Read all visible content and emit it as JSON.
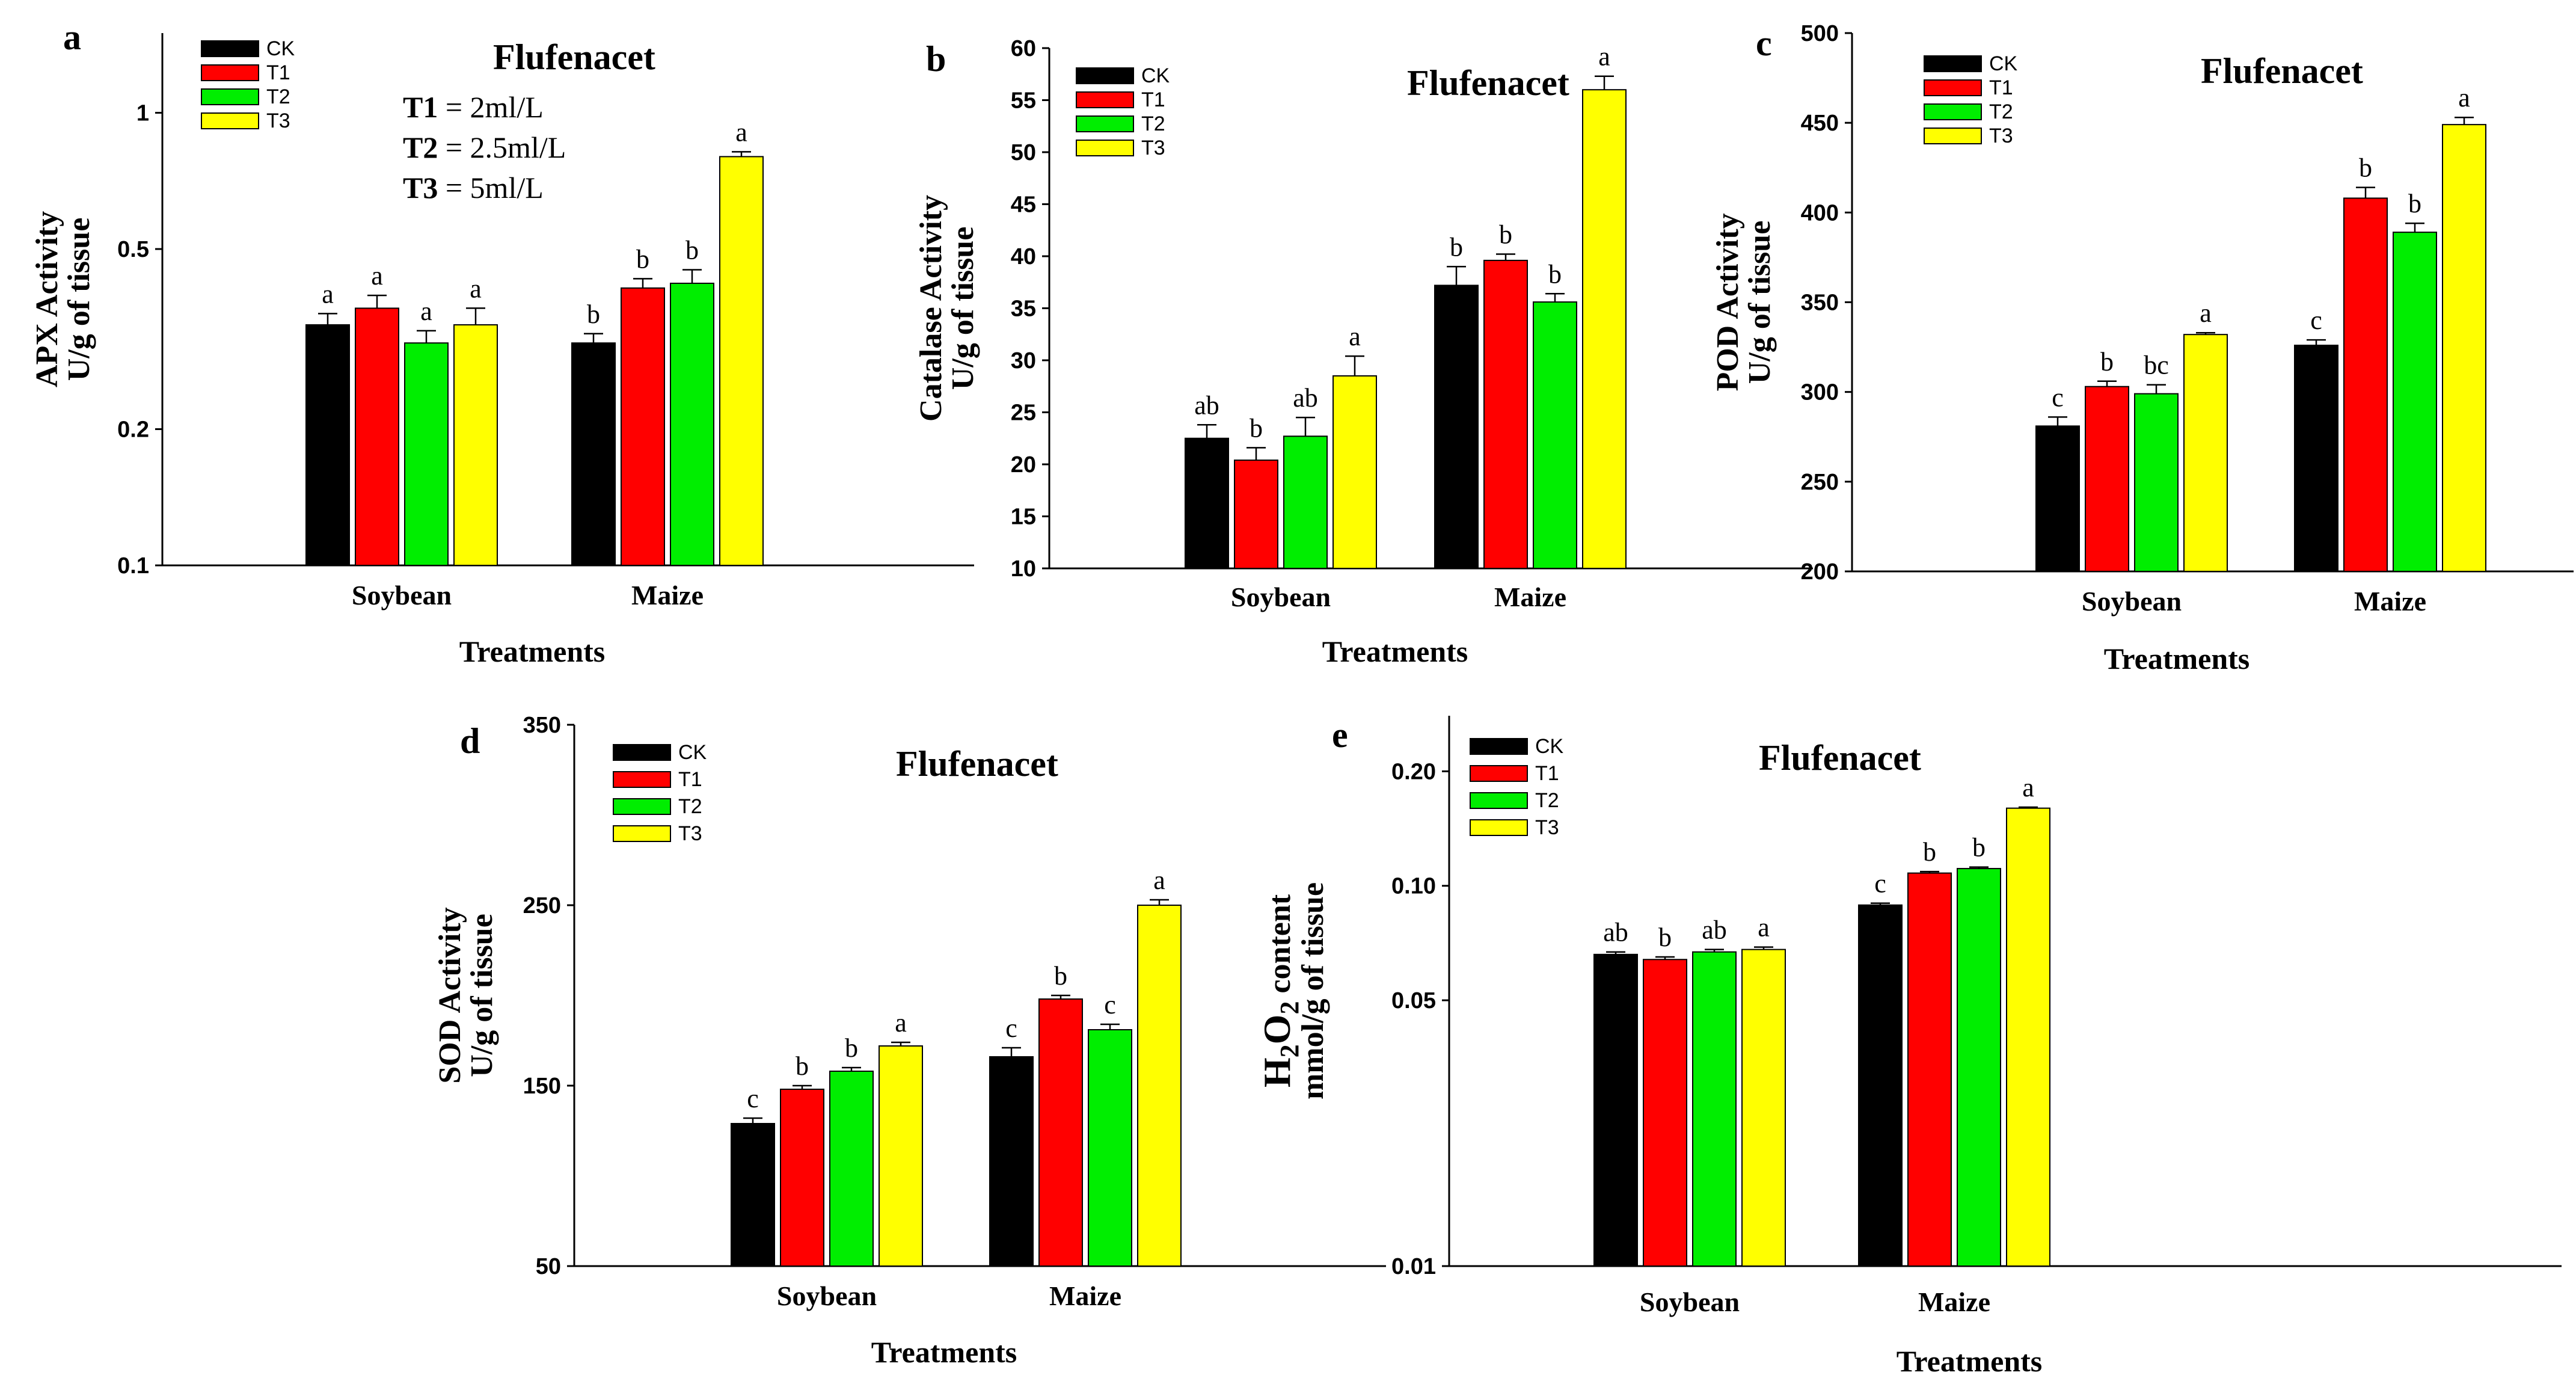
{
  "figure": {
    "colors": {
      "CK": "#000000",
      "T1": "#ff0000",
      "T2": "#00ee00",
      "T3": "#ffff00"
    }
  },
  "chart_data": [
    {
      "id": "a",
      "panel_label": "a",
      "type": "bar",
      "title": "Flufenacet",
      "scale": "log",
      "ylabel": [
        "APX Activity",
        "U/g of tissue"
      ],
      "xlabel": "Treatments",
      "ylim": [
        0.1,
        1.5
      ],
      "yticks": [
        0.1,
        0.2,
        0.5,
        1
      ],
      "ytick_labels": [
        "0.1",
        "0.2",
        "0.5",
        "1"
      ],
      "categories": [
        "Soybean",
        "Maize"
      ],
      "legend": [
        "CK",
        "T1",
        "T2",
        "T3"
      ],
      "series": [
        {
          "name": "CK",
          "values": [
            0.34,
            0.31
          ],
          "errors": [
            0.02,
            0.015
          ],
          "letters": [
            "a",
            "b"
          ]
        },
        {
          "name": "T1",
          "values": [
            0.37,
            0.41
          ],
          "errors": [
            0.025,
            0.02
          ],
          "letters": [
            "a",
            "b"
          ]
        },
        {
          "name": "T2",
          "values": [
            0.31,
            0.42
          ],
          "errors": [
            0.02,
            0.03
          ],
          "letters": [
            "a",
            "b"
          ]
        },
        {
          "name": "T3",
          "values": [
            0.34,
            0.8
          ],
          "errors": [
            0.03,
            0.02
          ],
          "letters": [
            "a",
            "a"
          ]
        }
      ],
      "notes": [
        {
          "label": "T1",
          "text": " = 2ml/L"
        },
        {
          "label": "T2",
          "text": " = 2.5ml/L"
        },
        {
          "label": "T3",
          "text": " = 5ml/L"
        }
      ]
    },
    {
      "id": "b",
      "panel_label": "b",
      "type": "bar",
      "title": "Flufenacet",
      "scale": "linear",
      "ylabel": [
        "Catalase Activity",
        "U/g of tissue"
      ],
      "xlabel": "Treatments",
      "ylim": [
        10,
        60
      ],
      "yticks": [
        10,
        15,
        20,
        25,
        30,
        35,
        40,
        45,
        50,
        55,
        60
      ],
      "ytick_labels": [
        "10",
        "15",
        "20",
        "25",
        "30",
        "35",
        "40",
        "45",
        "50",
        "55",
        "60"
      ],
      "categories": [
        "Soybean",
        "Maize"
      ],
      "legend": [
        "CK",
        "T1",
        "T2",
        "T3"
      ],
      "series": [
        {
          "name": "CK",
          "values": [
            22.5,
            37.2
          ],
          "errors": [
            1.3,
            1.8
          ],
          "letters": [
            "ab",
            "b"
          ]
        },
        {
          "name": "T1",
          "values": [
            20.4,
            39.6
          ],
          "errors": [
            1.2,
            0.6
          ],
          "letters": [
            "b",
            "b"
          ]
        },
        {
          "name": "T2",
          "values": [
            22.7,
            35.6
          ],
          "errors": [
            1.8,
            0.8
          ],
          "letters": [
            "ab",
            "b"
          ]
        },
        {
          "name": "T3",
          "values": [
            28.5,
            56.0
          ],
          "errors": [
            1.9,
            1.3
          ],
          "letters": [
            "a",
            "a"
          ]
        }
      ]
    },
    {
      "id": "c",
      "panel_label": "c",
      "type": "bar",
      "title": "Flufenacet",
      "scale": "linear",
      "ylabel": [
        "POD Activity",
        "U/g of tissue"
      ],
      "xlabel": "Treatments",
      "ylim": [
        200,
        500
      ],
      "yticks": [
        200,
        250,
        300,
        350,
        400,
        450,
        500
      ],
      "ytick_labels": [
        "200",
        "250",
        "300",
        "350",
        "400",
        "450",
        "500"
      ],
      "categories": [
        "Soybean",
        "Maize"
      ],
      "legend": [
        "CK",
        "T1",
        "T2",
        "T3"
      ],
      "series": [
        {
          "name": "CK",
          "values": [
            281,
            326
          ],
          "errors": [
            5,
            3
          ],
          "letters": [
            "c",
            "c"
          ]
        },
        {
          "name": "T1",
          "values": [
            303,
            408
          ],
          "errors": [
            3,
            6
          ],
          "letters": [
            "b",
            "b"
          ]
        },
        {
          "name": "T2",
          "values": [
            299,
            389
          ],
          "errors": [
            5,
            5
          ],
          "letters": [
            "bc",
            "b"
          ]
        },
        {
          "name": "T3",
          "values": [
            332,
            449
          ],
          "errors": [
            1,
            4
          ],
          "letters": [
            "a",
            "a"
          ]
        }
      ]
    },
    {
      "id": "d",
      "panel_label": "d",
      "type": "bar",
      "title": "Flufenacet",
      "scale": "linear",
      "ylabel": [
        "SOD Activity",
        "U/g of tissue"
      ],
      "xlabel": "Treatments",
      "ylim": [
        50,
        350
      ],
      "yticks": [
        50,
        150,
        250,
        350
      ],
      "ytick_labels": [
        "50",
        "150",
        "250",
        "350"
      ],
      "categories": [
        "Soybean",
        "Maize"
      ],
      "legend": [
        "CK",
        "T1",
        "T2",
        "T3"
      ],
      "series": [
        {
          "name": "CK",
          "values": [
            129,
            166
          ],
          "errors": [
            3,
            5
          ],
          "letters": [
            "c",
            "c"
          ]
        },
        {
          "name": "T1",
          "values": [
            148,
            198
          ],
          "errors": [
            2,
            2
          ],
          "letters": [
            "b",
            "b"
          ]
        },
        {
          "name": "T2",
          "values": [
            158,
            181
          ],
          "errors": [
            2,
            3
          ],
          "letters": [
            "b",
            "c"
          ]
        },
        {
          "name": "T3",
          "values": [
            172,
            250
          ],
          "errors": [
            2,
            3
          ],
          "letters": [
            "a",
            "a"
          ]
        }
      ]
    },
    {
      "id": "e",
      "panel_label": "e",
      "type": "bar",
      "title": "Flufenacet",
      "scale": "log",
      "ylabel_rich": {
        "h": "H",
        "sub1": "2",
        "o": "O",
        "sub2": "2",
        "rest": " content"
      },
      "ylabel": [
        "H2O2 content",
        "mmol/g of tissue"
      ],
      "xlabel": "Treatments",
      "ylim": [
        0.01,
        0.28
      ],
      "yticks": [
        0.01,
        0.05,
        0.1,
        0.2
      ],
      "ytick_labels": [
        "0.01",
        "0.05",
        "0.10",
        "0.20"
      ],
      "categories": [
        "Soybean",
        "Maize"
      ],
      "legend": [
        "CK",
        "T1",
        "T2",
        "T3"
      ],
      "series": [
        {
          "name": "CK",
          "values": [
            0.066,
            0.089
          ],
          "errors": [
            0.001,
            0.001
          ],
          "letters": [
            "ab",
            "c"
          ]
        },
        {
          "name": "T1",
          "values": [
            0.064,
            0.108
          ],
          "errors": [
            0.001,
            0.001
          ],
          "letters": [
            "b",
            "b"
          ]
        },
        {
          "name": "T2",
          "values": [
            0.067,
            0.111
          ],
          "errors": [
            0.001,
            0.001
          ],
          "letters": [
            "ab",
            "b"
          ]
        },
        {
          "name": "T3",
          "values": [
            0.068,
            0.16
          ],
          "errors": [
            0.001,
            0.001
          ],
          "letters": [
            "a",
            "a"
          ]
        }
      ]
    }
  ]
}
